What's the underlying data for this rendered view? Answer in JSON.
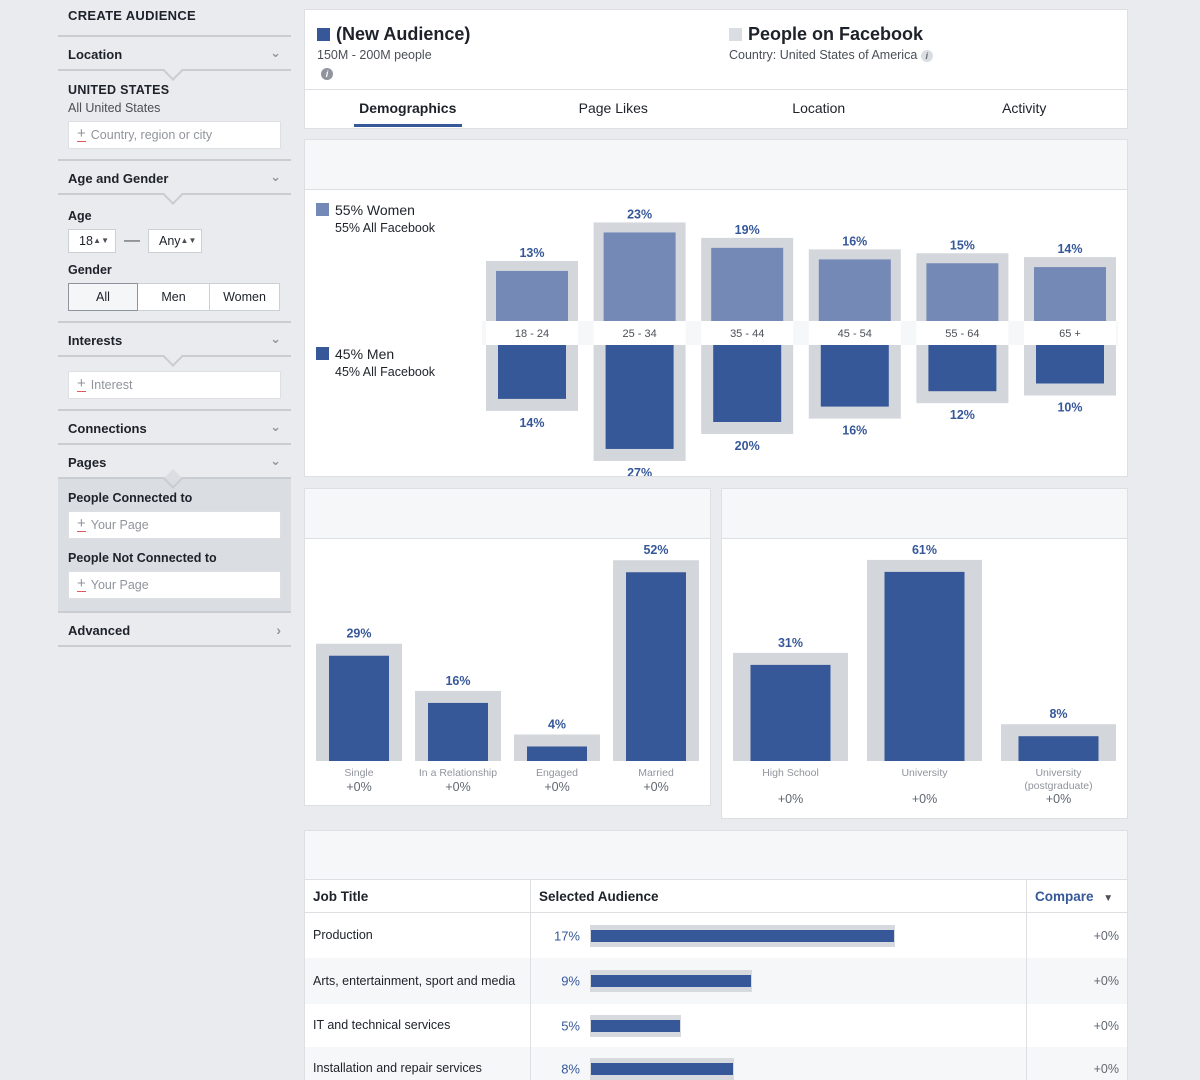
{
  "colors": {
    "accent": "#365899",
    "women": "#7589b7",
    "men": "#365899",
    "baseline": "#d3d6db",
    "facebook_swatch": "#dadde1"
  },
  "sidebar": {
    "title": "CREATE AUDIENCE",
    "location": {
      "header": "Location",
      "country": "UNITED STATES",
      "sub": "All United States",
      "placeholder": "Country, region or city"
    },
    "age_gender": {
      "header": "Age and Gender",
      "age_label": "Age",
      "age_min": "18",
      "age_max": "Any",
      "gender_label": "Gender",
      "gender_options": [
        "All",
        "Men",
        "Women"
      ]
    },
    "interests": {
      "header": "Interests",
      "placeholder": "Interest"
    },
    "connections": {
      "header": "Connections"
    },
    "pages": {
      "header": "Pages",
      "connected_label": "People Connected to",
      "connected_placeholder": "Your Page",
      "not_connected_label": "People Not Connected to",
      "not_connected_placeholder": "Your Page"
    },
    "advanced": {
      "header": "Advanced"
    }
  },
  "header": {
    "audience_title": "(New Audience)",
    "audience_size": "150M - 200M people",
    "compare_title": "People on Facebook",
    "compare_sub": "Country: United States of America",
    "tabs": [
      "Demographics",
      "Page Likes",
      "Location",
      "Activity"
    ]
  },
  "demographics": {
    "women_label": "55% Women",
    "women_sub": "55% All Facebook",
    "men_label": "45% Men",
    "men_sub": "45% All Facebook"
  },
  "chart_data": [
    {
      "type": "bar",
      "title": "",
      "categories": [
        "18 - 24",
        "25 - 34",
        "35 - 44",
        "45 - 54",
        "55 - 64",
        "65 +"
      ],
      "series": [
        {
          "name": "Women",
          "values": [
            13,
            23,
            19,
            16,
            15,
            14
          ],
          "baseline": [
            13,
            23,
            19,
            16,
            15,
            14
          ]
        },
        {
          "name": "Men",
          "values": [
            14,
            27,
            20,
            16,
            12,
            10
          ],
          "baseline": [
            14,
            27,
            20,
            16,
            12,
            10
          ]
        }
      ],
      "unit": "%"
    },
    {
      "type": "bar",
      "title": "",
      "categories": [
        "Single",
        "In a Relationship",
        "Engaged",
        "Married"
      ],
      "values": [
        29,
        16,
        4,
        52
      ],
      "baseline": [
        29,
        16,
        4,
        52
      ],
      "deltas": [
        "+0%",
        "+0%",
        "+0%",
        "+0%"
      ],
      "unit": "%"
    },
    {
      "type": "bar",
      "title": "",
      "categories": [
        "High School",
        "University",
        "University (postgraduate)"
      ],
      "category_lines": [
        [
          "High School"
        ],
        [
          "University"
        ],
        [
          "University",
          "(postgraduate)"
        ]
      ],
      "values": [
        31,
        61,
        8
      ],
      "baseline": [
        31,
        61,
        8
      ],
      "deltas": [
        "+0%",
        "+0%",
        "+0%"
      ],
      "unit": "%"
    },
    {
      "type": "table",
      "columns": [
        "Job Title",
        "Selected Audience",
        "Compare"
      ],
      "rows": [
        {
          "title": "Production",
          "pct": 17,
          "label": "17%",
          "compare": "+0%"
        },
        {
          "title": "Arts, entertainment, sport and media",
          "pct": 9,
          "label": "9%",
          "compare": "+0%"
        },
        {
          "title": "IT and technical services",
          "pct": 5,
          "label": "5%",
          "compare": "+0%"
        },
        {
          "title": "Installation and repair services",
          "pct": 8,
          "label": "8%",
          "compare": "+0%"
        }
      ]
    }
  ],
  "icons": {
    "chevron_down": "chevron-down-icon",
    "chevron_right": "chevron-right-icon",
    "plus": "plus-icon",
    "info": "info-icon",
    "sort": "caret-down-icon"
  }
}
